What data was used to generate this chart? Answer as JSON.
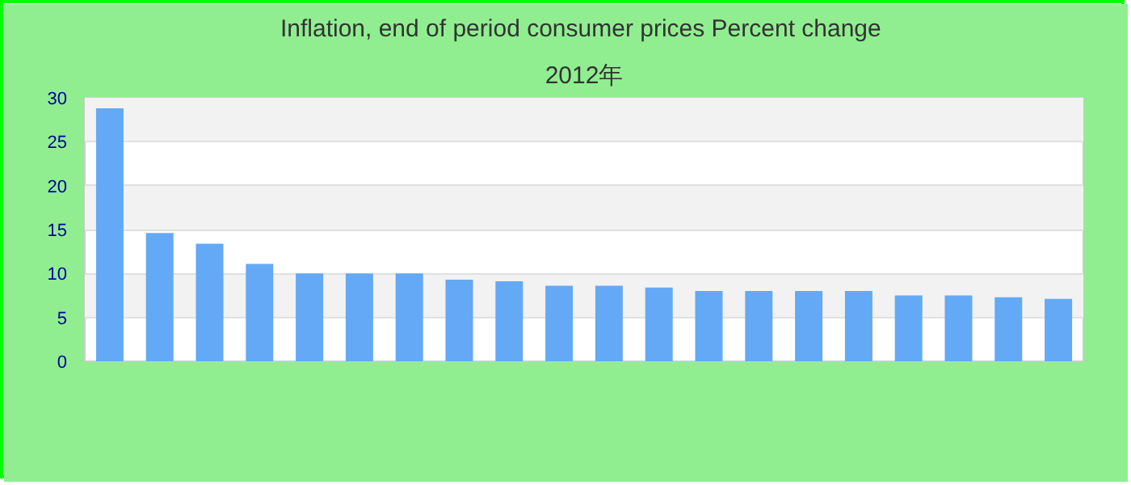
{
  "chart_data": {
    "type": "bar",
    "title": "Inflation, end of period consumer prices  Percent change",
    "subtitle": "2012年",
    "categories": [
      null,
      null,
      null,
      null,
      null,
      null,
      null,
      null,
      null,
      null,
      null,
      null,
      null,
      null,
      null,
      null,
      null,
      null,
      null,
      null
    ],
    "values": [
      28.8,
      14.6,
      13.4,
      11.1,
      10.0,
      10.0,
      10.0,
      9.3,
      9.1,
      8.6,
      8.6,
      8.4,
      8.0,
      8.0,
      8.0,
      8.0,
      7.5,
      7.5,
      7.3,
      7.1
    ],
    "color": "#63a9f5",
    "ylim": [
      0,
      30
    ],
    "yticks": [
      0,
      5,
      10,
      15,
      20,
      25,
      30
    ],
    "grid": "y"
  }
}
